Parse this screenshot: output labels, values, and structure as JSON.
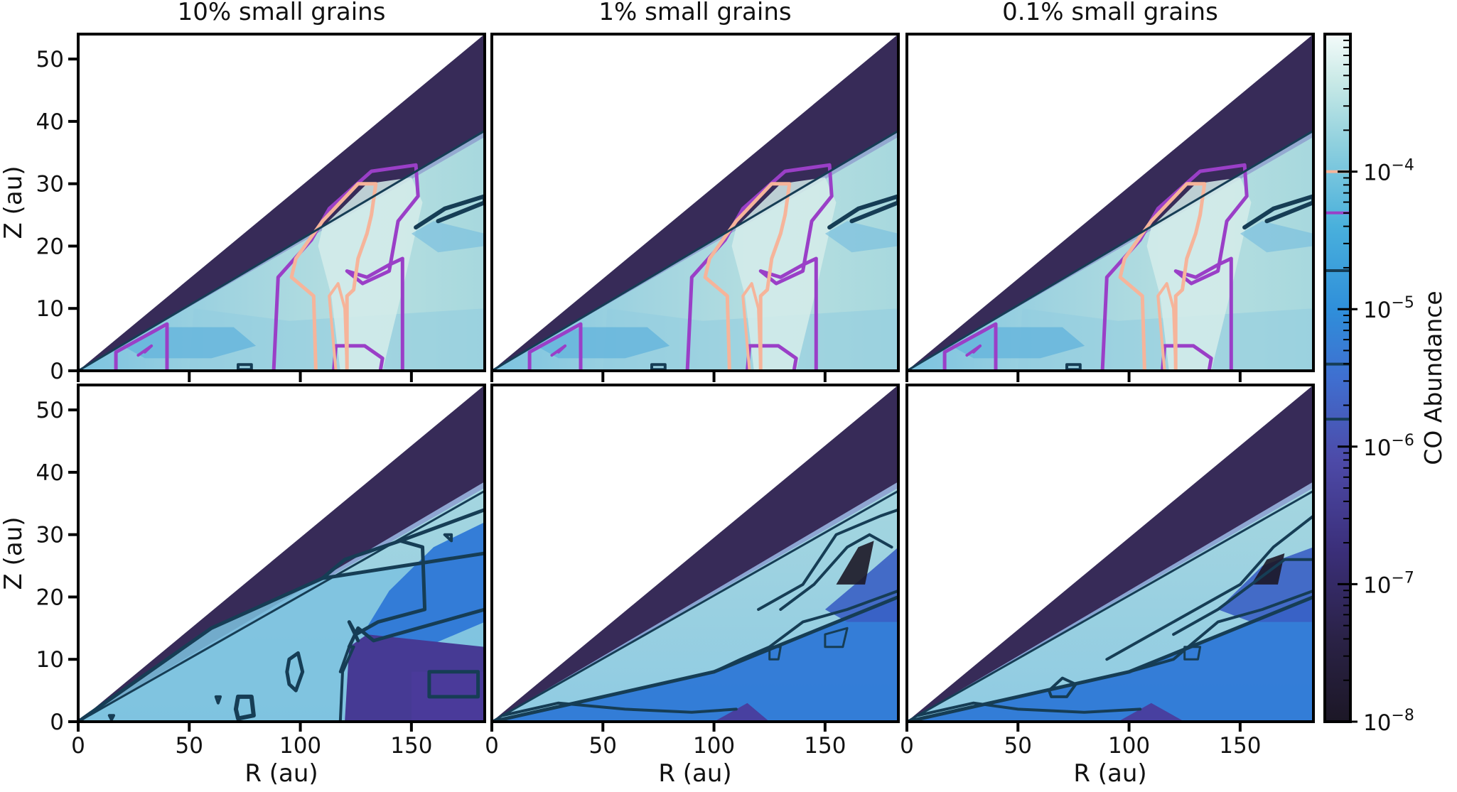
{
  "chart_data": {
    "type": "heatmap",
    "layout": {
      "rows": 2,
      "cols": 3
    },
    "column_titles": [
      "10% small grains",
      "1% small grains",
      "0.1% small grains"
    ],
    "xlabel": "R (au)",
    "ylabel": "Z (au)",
    "xlim": [
      0,
      183
    ],
    "ylim": [
      0,
      54
    ],
    "xticks": [
      0,
      50,
      100,
      150
    ],
    "yticks": [
      0,
      10,
      20,
      30,
      40,
      50
    ],
    "colorbar": {
      "label": "CO Abundance",
      "scale": "log",
      "range": [
        1e-08,
        0.001
      ],
      "major_ticks": [
        {
          "value": -8,
          "base": "10",
          "exp": "−8"
        },
        {
          "value": -7,
          "base": "10",
          "exp": "−7"
        },
        {
          "value": -6,
          "base": "10",
          "exp": "−6"
        },
        {
          "value": -5,
          "base": "10",
          "exp": "−5"
        },
        {
          "value": -4,
          "base": "10",
          "exp": "−4"
        }
      ],
      "contour_levels_log": [
        -5.8,
        -5.4,
        -4.72,
        -4.3,
        -4.0
      ],
      "contour_level_colors": [
        "#163d55",
        "#163d55",
        "#163d55",
        "#9a3fc7",
        "#f6b49a"
      ]
    },
    "colors": {
      "background_dark": "#1c1726",
      "upper_medium": "#a9d9dc",
      "upper_warm_core": "#cde9e7",
      "midplane_cool": "#5fb2db",
      "depleted_blue": "#2b78d4",
      "depleted_purple": "#4a3a9a",
      "contour_dark": "#163d55",
      "contour_purple": "#9a3fc7",
      "contour_peach": "#f6b49a"
    },
    "panels": [
      {
        "row": 0,
        "col": 0,
        "variant": "upper"
      },
      {
        "row": 0,
        "col": 1,
        "variant": "upper"
      },
      {
        "row": 0,
        "col": 2,
        "variant": "upper"
      },
      {
        "row": 1,
        "col": 0,
        "variant": "lower-10"
      },
      {
        "row": 1,
        "col": 1,
        "variant": "lower-1"
      },
      {
        "row": 1,
        "col": 2,
        "variant": "lower-01"
      }
    ]
  }
}
